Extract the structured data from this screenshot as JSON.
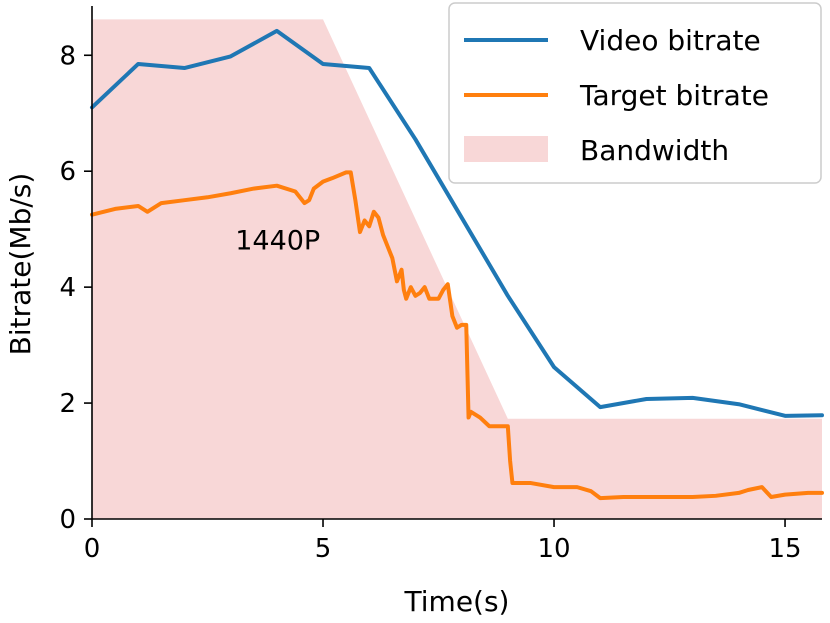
{
  "chart_data": {
    "type": "line",
    "xlabel": "Time(s)",
    "ylabel": "Bitrate(Mb/s)",
    "xlim": [
      0,
      15.8
    ],
    "ylim": [
      0,
      8.85
    ],
    "xticks": [
      0,
      5,
      10,
      15
    ],
    "yticks": [
      0,
      2,
      4,
      6,
      8
    ],
    "grid": false,
    "legend_position": "top-right",
    "annotations": [
      {
        "text": "1440P",
        "x": 3.1,
        "y": 4.65
      }
    ],
    "series": [
      {
        "name": "Bandwidth",
        "kind": "area",
        "color": "#f8d7d7",
        "x": [
          0,
          5,
          9,
          15.8
        ],
        "y": [
          8.62,
          8.62,
          1.73,
          1.73
        ]
      },
      {
        "name": "Video bitrate",
        "kind": "line",
        "color": "#1f77b4",
        "x": [
          0,
          1,
          2,
          3,
          4,
          5,
          6,
          7,
          8,
          9,
          10,
          11,
          12,
          13,
          14,
          15,
          15.8
        ],
        "y": [
          7.1,
          7.85,
          7.78,
          7.98,
          8.42,
          7.85,
          7.78,
          6.55,
          5.2,
          3.85,
          2.62,
          1.93,
          2.07,
          2.09,
          1.98,
          1.78,
          1.79
        ]
      },
      {
        "name": "Target bitrate",
        "kind": "line",
        "color": "#ff7f0e",
        "x": [
          0,
          0.5,
          1.0,
          1.2,
          1.5,
          2.0,
          2.5,
          3.0,
          3.5,
          4.0,
          4.4,
          4.6,
          4.7,
          4.8,
          5.0,
          5.2,
          5.5,
          5.6,
          5.7,
          5.8,
          5.9,
          6.0,
          6.1,
          6.2,
          6.3,
          6.4,
          6.5,
          6.6,
          6.7,
          6.75,
          6.8,
          6.9,
          7.0,
          7.1,
          7.2,
          7.3,
          7.5,
          7.6,
          7.7,
          7.8,
          7.9,
          8.0,
          8.1,
          8.15,
          8.2,
          8.4,
          8.6,
          8.8,
          9.0,
          9.05,
          9.1,
          9.5,
          10.0,
          10.5,
          10.8,
          11.0,
          11.5,
          12.0,
          12.5,
          13.0,
          13.5,
          14.0,
          14.2,
          14.5,
          14.7,
          15.0,
          15.5,
          15.8
        ],
        "y": [
          5.25,
          5.35,
          5.4,
          5.3,
          5.45,
          5.5,
          5.55,
          5.62,
          5.7,
          5.75,
          5.65,
          5.45,
          5.5,
          5.7,
          5.82,
          5.88,
          5.98,
          5.98,
          5.5,
          4.95,
          5.15,
          5.05,
          5.3,
          5.2,
          4.9,
          4.7,
          4.5,
          4.1,
          4.3,
          3.95,
          3.8,
          4.0,
          3.85,
          3.9,
          4.0,
          3.8,
          3.8,
          3.95,
          4.05,
          3.5,
          3.3,
          3.35,
          3.35,
          1.75,
          1.85,
          1.75,
          1.6,
          1.6,
          1.6,
          1.0,
          0.62,
          0.62,
          0.55,
          0.55,
          0.48,
          0.36,
          0.38,
          0.38,
          0.38,
          0.38,
          0.4,
          0.45,
          0.5,
          0.55,
          0.38,
          0.42,
          0.45,
          0.45
        ]
      }
    ]
  }
}
